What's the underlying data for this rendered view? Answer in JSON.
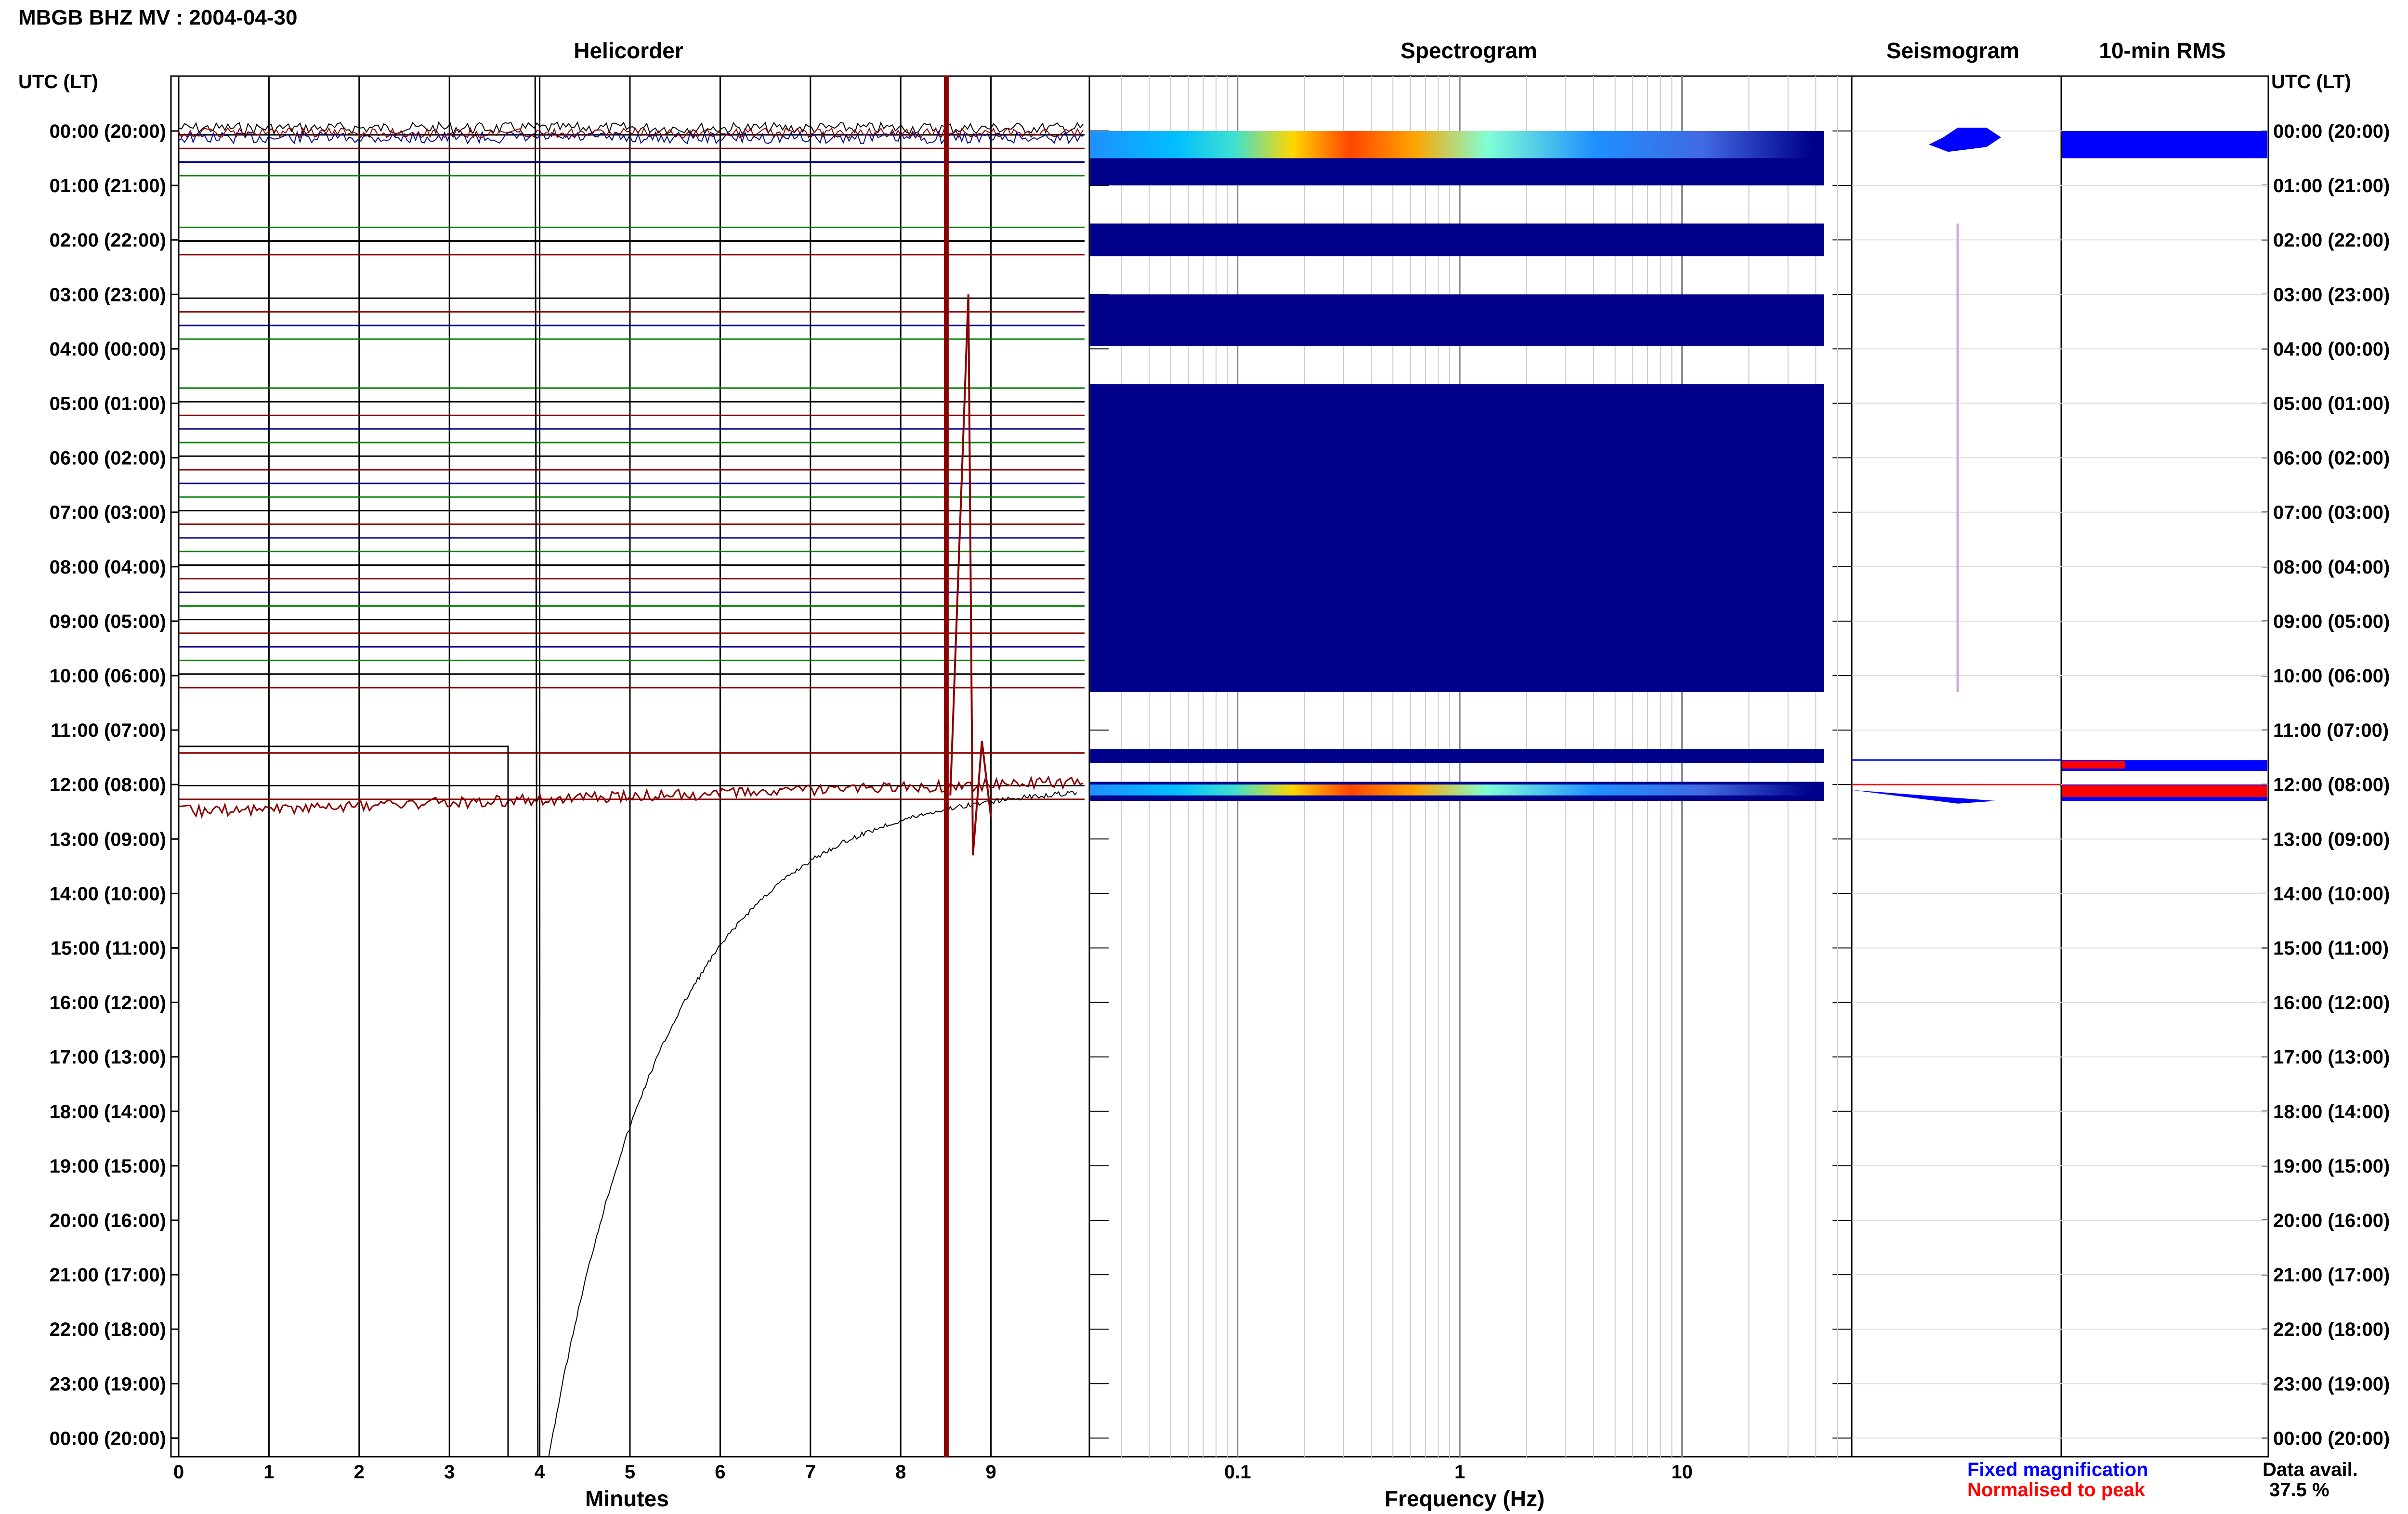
{
  "header": {
    "title": "MBGB BHZ MV : 2004-04-30"
  },
  "panels": {
    "helicorder": "Helicorder",
    "spectrogram": "Spectrogram",
    "seismogram": "Seismogram",
    "rms": "10-min RMS"
  },
  "axis": {
    "time_label_left": "UTC (LT)",
    "time_label_right": "UTC (LT)",
    "time_ticks": [
      "00:00 (20:00)",
      "01:00 (21:00)",
      "02:00 (22:00)",
      "03:00 (23:00)",
      "04:00 (00:00)",
      "05:00 (01:00)",
      "06:00 (02:00)",
      "07:00 (03:00)",
      "08:00 (04:00)",
      "09:00 (05:00)",
      "10:00 (06:00)",
      "11:00 (07:00)",
      "12:00 (08:00)",
      "13:00 (09:00)",
      "14:00 (10:00)",
      "15:00 (11:00)",
      "16:00 (12:00)",
      "17:00 (13:00)",
      "18:00 (14:00)",
      "19:00 (15:00)",
      "20:00 (16:00)",
      "21:00 (17:00)",
      "22:00 (18:00)",
      "23:00 (19:00)",
      "00:00 (20:00)"
    ],
    "minutes_label": "Minutes",
    "minutes_ticks": [
      "0",
      "1",
      "2",
      "3",
      "4",
      "5",
      "6",
      "7",
      "8",
      "9"
    ],
    "frequency_label": "Frequency (Hz)",
    "frequency_ticks": [
      "0.1",
      "1",
      "10"
    ]
  },
  "legend": {
    "fixed": "Fixed magnification",
    "normalised": "Normalised to peak"
  },
  "data_avail": {
    "label": "Data avail.",
    "value": "37.5 %"
  },
  "colors": {
    "black_trace": "#000000",
    "red_trace": "#8b0000",
    "blue_trace": "#00008b",
    "green_line": "#008000",
    "spectro_bg": "#00008b",
    "fixed": "#0000ff",
    "normalised": "#ff0000",
    "seis_pink": "#d8a8d8"
  },
  "chart_data": {
    "type": "heatmap",
    "title": "MBGB BHZ MV : 2004-04-30",
    "x_minutes_range": [
      0,
      10
    ],
    "frequency_range_hz": [
      0.025,
      50
    ],
    "frequency_scale": "log",
    "time_range_utc": [
      "00:00",
      "24:00"
    ],
    "data_available_percent": 37.5,
    "data_hours_utc": [
      {
        "start": 0.0,
        "end": 1.0
      },
      {
        "start": 1.7,
        "end": 2.3
      },
      {
        "start": 3.0,
        "end": 3.95
      },
      {
        "start": 4.65,
        "end": 10.3
      },
      {
        "start": 11.35,
        "end": 11.6
      },
      {
        "start": 11.95,
        "end": 12.3
      }
    ],
    "spectrogram_active_bands_utc": [
      {
        "start": 0.0,
        "end": 0.5,
        "peak_frequency_hz": [
          0.2,
          0.6
        ]
      },
      {
        "start": 12.0,
        "end": 12.2,
        "peak_frequency_hz": [
          0.2,
          0.6
        ]
      }
    ],
    "rms_10min": {
      "fixed_magnification_hours": [
        0.0,
        0.5,
        11.55,
        11.75,
        12.0,
        12.3
      ],
      "normalised_to_peak_hours": [
        11.6,
        12.05
      ]
    },
    "helicorder_features": [
      {
        "hour": 12.0,
        "minute": 4.0,
        "description": "step offset / long-period transient, black trace recovering over ~7 minutes"
      },
      {
        "hour": 12.0,
        "minute": 8.5,
        "description": "large amplitude spikes, red trace"
      }
    ]
  }
}
